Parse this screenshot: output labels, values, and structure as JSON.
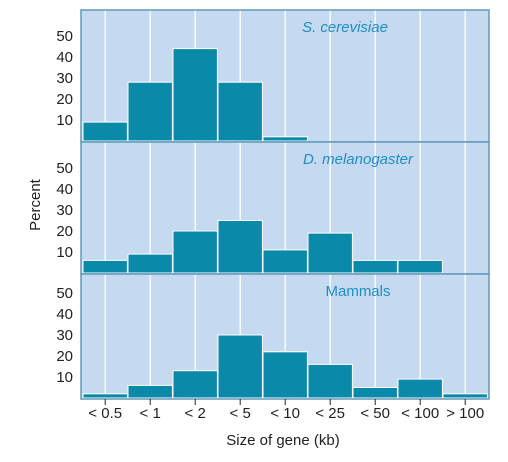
{
  "colors": {
    "panel_bg": "#c5d9f1",
    "bar": "#0a8aa8",
    "bar_stroke": "#ffffff",
    "frame": "#5f9ab8",
    "grid": "#ffffff",
    "title": "#1e8fc4",
    "tick": "#222222"
  },
  "chart_data": {
    "type": "bar",
    "xlabel": "Size of gene (kb)",
    "ylabel": "Percent",
    "categories": [
      "< 0.5",
      "< 1",
      "< 2",
      "< 5",
      "< 10",
      "< 25",
      "< 50",
      "< 100",
      "> 100"
    ],
    "yticks": [
      10,
      20,
      30,
      40,
      50
    ],
    "ylim": [
      0,
      63
    ],
    "grid": "vertical",
    "panels": [
      {
        "name": "S. cerevisiae",
        "italic": true,
        "values": [
          9,
          28,
          44,
          28,
          2,
          0,
          0,
          0,
          0
        ]
      },
      {
        "name": "D. melanogaster",
        "italic": true,
        "values": [
          6,
          9,
          20,
          25,
          11,
          19,
          6,
          6,
          0
        ]
      },
      {
        "name": "Mammals",
        "italic": false,
        "values": [
          2,
          6,
          13,
          30,
          22,
          16,
          5,
          9,
          2
        ]
      }
    ]
  }
}
